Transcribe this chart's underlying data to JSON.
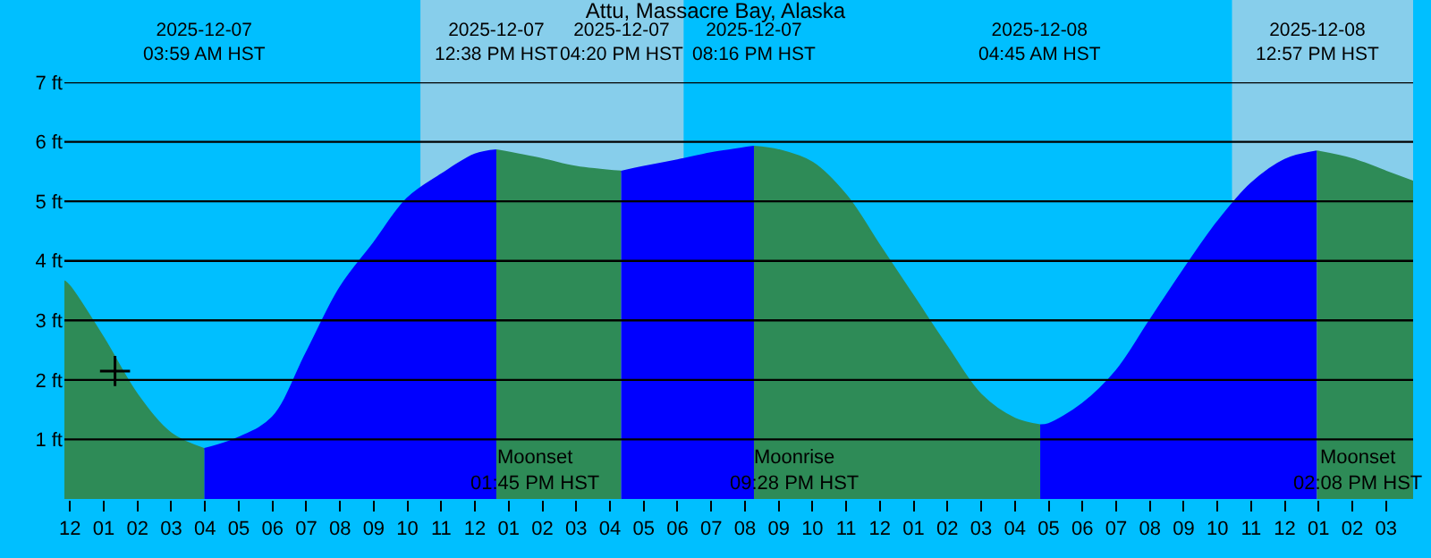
{
  "chart_data": {
    "type": "area",
    "title": "Attu, Massacre Bay, Alaska",
    "xlim": [
      "2025-12-06T23:50",
      "2025-12-08T15:48"
    ],
    "xticks": [
      {
        "value": "2025-12-07T00:00",
        "label": "12"
      },
      {
        "value": "2025-12-07T01:00",
        "label": "01"
      },
      {
        "value": "2025-12-07T02:00",
        "label": "02"
      },
      {
        "value": "2025-12-07T03:00",
        "label": "03"
      },
      {
        "value": "2025-12-07T04:00",
        "label": "04"
      },
      {
        "value": "2025-12-07T05:00",
        "label": "05"
      },
      {
        "value": "2025-12-07T06:00",
        "label": "06"
      },
      {
        "value": "2025-12-07T07:00",
        "label": "07"
      },
      {
        "value": "2025-12-07T08:00",
        "label": "08"
      },
      {
        "value": "2025-12-07T09:00",
        "label": "09"
      },
      {
        "value": "2025-12-07T10:00",
        "label": "10"
      },
      {
        "value": "2025-12-07T11:00",
        "label": "11"
      },
      {
        "value": "2025-12-07T12:00",
        "label": "12"
      },
      {
        "value": "2025-12-07T13:00",
        "label": "01"
      },
      {
        "value": "2025-12-07T14:00",
        "label": "02"
      },
      {
        "value": "2025-12-07T15:00",
        "label": "03"
      },
      {
        "value": "2025-12-07T16:00",
        "label": "04"
      },
      {
        "value": "2025-12-07T17:00",
        "label": "05"
      },
      {
        "value": "2025-12-07T18:00",
        "label": "06"
      },
      {
        "value": "2025-12-07T19:00",
        "label": "07"
      },
      {
        "value": "2025-12-07T20:00",
        "label": "08"
      },
      {
        "value": "2025-12-07T21:00",
        "label": "09"
      },
      {
        "value": "2025-12-07T22:00",
        "label": "10"
      },
      {
        "value": "2025-12-07T23:00",
        "label": "11"
      },
      {
        "value": "2025-12-08T00:00",
        "label": "12"
      },
      {
        "value": "2025-12-08T01:00",
        "label": "01"
      },
      {
        "value": "2025-12-08T02:00",
        "label": "02"
      },
      {
        "value": "2025-12-08T03:00",
        "label": "03"
      },
      {
        "value": "2025-12-08T04:00",
        "label": "04"
      },
      {
        "value": "2025-12-08T05:00",
        "label": "05"
      },
      {
        "value": "2025-12-08T06:00",
        "label": "06"
      },
      {
        "value": "2025-12-08T07:00",
        "label": "07"
      },
      {
        "value": "2025-12-08T08:00",
        "label": "08"
      },
      {
        "value": "2025-12-08T09:00",
        "label": "09"
      },
      {
        "value": "2025-12-08T10:00",
        "label": "10"
      },
      {
        "value": "2025-12-08T11:00",
        "label": "11"
      },
      {
        "value": "2025-12-08T12:00",
        "label": "12"
      },
      {
        "value": "2025-12-08T13:00",
        "label": "01"
      },
      {
        "value": "2025-12-08T14:00",
        "label": "02"
      },
      {
        "value": "2025-12-08T15:00",
        "label": "03"
      }
    ],
    "ylim": [
      0,
      7
    ],
    "yticks": [
      {
        "value": 1,
        "label": "1 ft"
      },
      {
        "value": 2,
        "label": "2 ft"
      },
      {
        "value": 3,
        "label": "3 ft"
      },
      {
        "value": 4,
        "label": "4 ft"
      },
      {
        "value": 5,
        "label": "5 ft"
      },
      {
        "value": 6,
        "label": "6 ft"
      },
      {
        "value": 7,
        "label": "7 ft"
      }
    ],
    "grid": "y",
    "bands": [
      {
        "axis": "x",
        "from": "2025-12-07T10:23",
        "to": "2025-12-07T18:11",
        "color": "#87ceeb"
      },
      {
        "axis": "x",
        "from": "2025-12-08T10:26",
        "to": "2025-12-08T15:48",
        "color": "#87ceeb"
      }
    ],
    "series": [
      {
        "color": "#2e8b57",
        "x": [
          "2025-12-06T23:50",
          "2025-12-07T00:00",
          "2025-12-07T01:00",
          "2025-12-07T02:00",
          "2025-12-07T03:00",
          "2025-12-07T03:59"
        ],
        "values": [
          3.66,
          3.57,
          2.7,
          1.75,
          1.1,
          0.84
        ]
      },
      {
        "color": "#0000ff",
        "x": [
          "2025-12-07T03:59",
          "2025-12-07T05:00",
          "2025-12-07T06:00",
          "2025-12-07T07:00",
          "2025-12-07T08:00",
          "2025-12-07T09:00",
          "2025-12-07T10:00",
          "2025-12-07T11:00",
          "2025-12-07T12:00",
          "2025-12-07T12:38"
        ],
        "values": [
          0.84,
          1.03,
          1.37,
          2.45,
          3.55,
          4.3,
          5.05,
          5.45,
          5.79,
          5.86
        ]
      },
      {
        "color": "#2e8b57",
        "x": [
          "2025-12-07T12:38",
          "2025-12-07T14:00",
          "2025-12-07T15:00",
          "2025-12-07T16:20"
        ],
        "values": [
          5.86,
          5.71,
          5.58,
          5.5
        ]
      },
      {
        "color": "#0000ff",
        "x": [
          "2025-12-07T16:20",
          "2025-12-07T17:00",
          "2025-12-07T18:00",
          "2025-12-07T19:00",
          "2025-12-07T20:16"
        ],
        "values": [
          5.5,
          5.58,
          5.69,
          5.81,
          5.92
        ]
      },
      {
        "color": "#2e8b57",
        "x": [
          "2025-12-07T20:16",
          "2025-12-07T21:00",
          "2025-12-07T22:00",
          "2025-12-07T23:00",
          "2025-12-08T00:00",
          "2025-12-08T01:00",
          "2025-12-08T02:00",
          "2025-12-08T03:00",
          "2025-12-08T04:00",
          "2025-12-08T04:45"
        ],
        "values": [
          5.92,
          5.86,
          5.65,
          5.1,
          4.25,
          3.4,
          2.55,
          1.75,
          1.35,
          1.24
        ]
      },
      {
        "color": "#0000ff",
        "x": [
          "2025-12-08T04:45",
          "2025-12-08T05:00",
          "2025-12-08T06:00",
          "2025-12-08T07:00",
          "2025-12-08T08:00",
          "2025-12-08T09:00",
          "2025-12-08T10:00",
          "2025-12-08T11:00",
          "2025-12-08T12:00",
          "2025-12-08T12:57"
        ],
        "values": [
          1.24,
          1.26,
          1.6,
          2.15,
          3.0,
          3.85,
          4.65,
          5.3,
          5.7,
          5.84
        ]
      },
      {
        "color": "#2e8b57",
        "x": [
          "2025-12-08T12:57",
          "2025-12-08T14:00",
          "2025-12-08T15:00",
          "2025-12-08T15:48"
        ],
        "values": [
          5.84,
          5.71,
          5.5,
          5.33
        ]
      },
      {
        "type": "scatter",
        "color": "#000000",
        "marker": "cross",
        "x": [
          "2025-12-07T01:20"
        ],
        "values": [
          2.15
        ]
      }
    ],
    "annotations": [
      "2025-12-07\n03:59 AM HST",
      "2025-12-07\n12:38 PM HST",
      "2025-12-07\n04:20 PM HST",
      "2025-12-07\n08:16 PM HST",
      "2025-12-08\n04:45 AM HST",
      "2025-12-08\n12:57 PM HST",
      {
        "text": "Moonset\n01:45 PM HST",
        "x": "2025-12-07T13:45",
        "y": 0
      },
      {
        "text": "Moonrise\n09:28 PM HST",
        "x": "2025-12-07T21:28",
        "y": 0
      },
      {
        "text": "Moonset\n02:08 PM HST",
        "x": "2025-12-08T14:08",
        "y": 0
      }
    ]
  }
}
